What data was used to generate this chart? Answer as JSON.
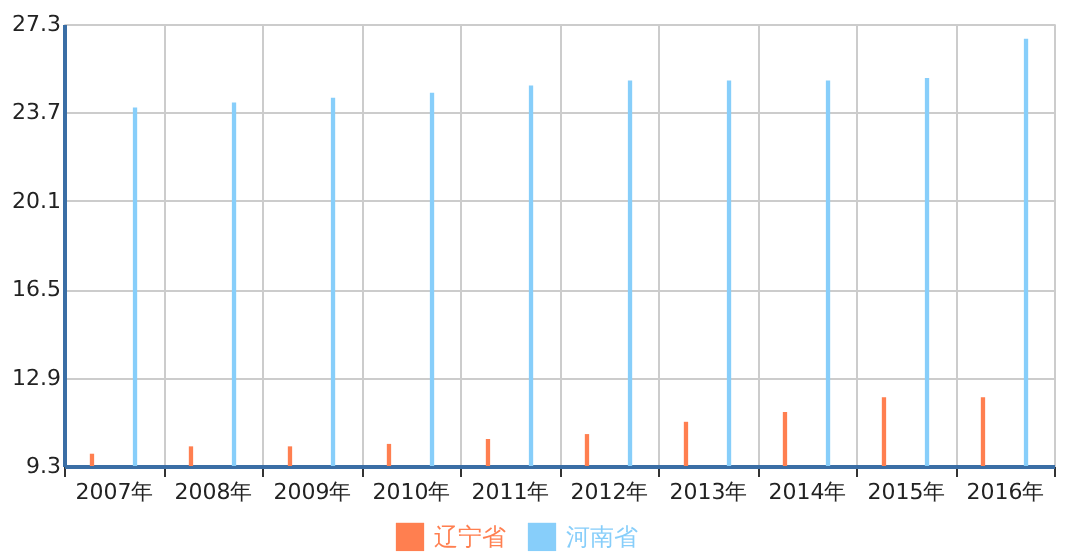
{
  "chart_data": {
    "type": "bar",
    "categories": [
      "2007年",
      "2008年",
      "2009年",
      "2010年",
      "2011年",
      "2012年",
      "2013年",
      "2014年",
      "2015年",
      "2016年"
    ],
    "series": [
      {
        "name": "辽宁省",
        "color": "#ff7f50",
        "values": [
          9.8,
          10.1,
          10.1,
          10.2,
          10.4,
          10.6,
          11.1,
          11.5,
          12.1,
          12.1
        ]
      },
      {
        "name": "河南省",
        "color": "#87cefa",
        "values": [
          23.9,
          24.1,
          24.3,
          24.5,
          24.8,
          25.0,
          25.0,
          25.0,
          25.1,
          26.7
        ]
      }
    ],
    "ylim": [
      9.3,
      27.3
    ],
    "yticks": [
      9.3,
      12.9,
      16.5,
      20.1,
      23.7,
      27.3
    ],
    "grid": true,
    "legend": "bottom"
  }
}
